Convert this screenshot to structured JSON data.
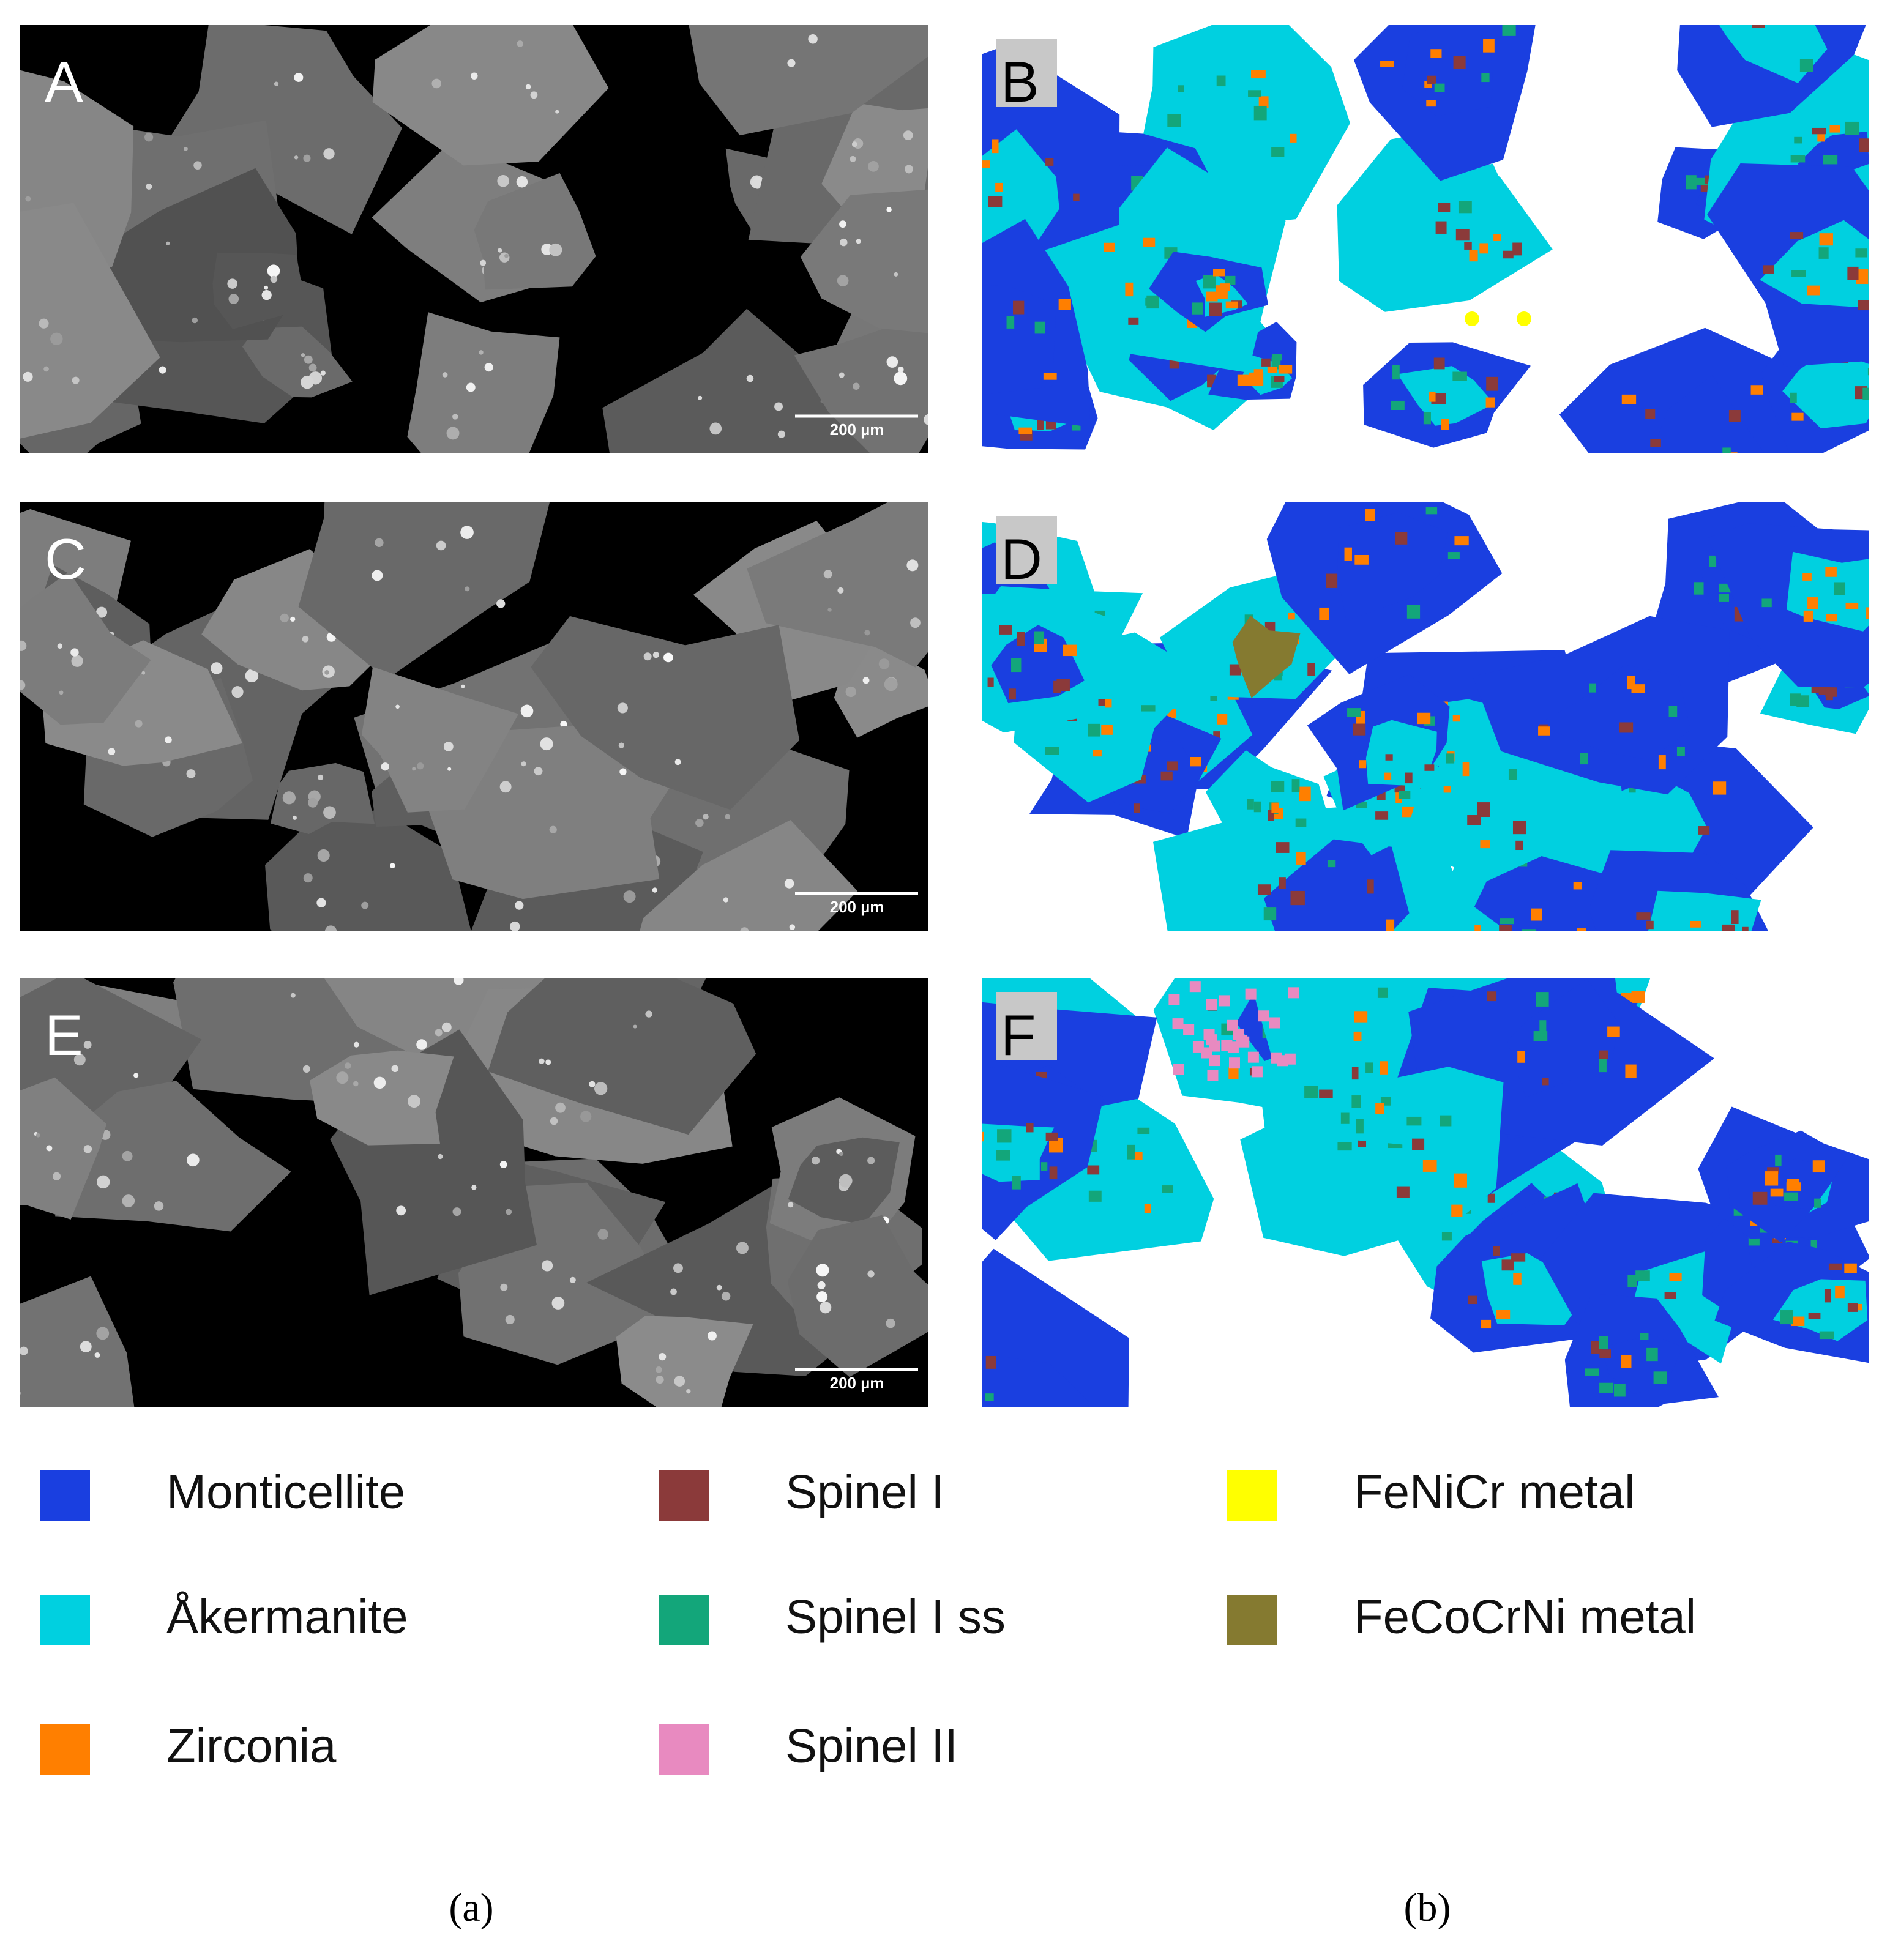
{
  "panels": [
    {
      "label": "A",
      "scale_bar": "200 µm"
    },
    {
      "label": "B"
    },
    {
      "label": "C",
      "scale_bar": "200 µm"
    },
    {
      "label": "D"
    },
    {
      "label": "E",
      "scale_bar": "200 µm"
    },
    {
      "label": "F"
    }
  ],
  "legend": [
    {
      "name": "Monticellite",
      "color": "#1a3fe0"
    },
    {
      "name": "Åkermanite",
      "color": "#00d0e0"
    },
    {
      "name": "Zirconia",
      "color": "#ff7f00"
    },
    {
      "name": "Spinel I",
      "color": "#8b3a3a"
    },
    {
      "name": "Spinel I ss",
      "color": "#13a67a"
    },
    {
      "name": "Spinel II",
      "color": "#e88ac0"
    },
    {
      "name": "FeNiCr metal",
      "color": "#ffff00"
    },
    {
      "name": "FeCoCrNi metal",
      "color": "#857a30"
    }
  ],
  "captions": [
    "(a)",
    "(b)"
  ]
}
